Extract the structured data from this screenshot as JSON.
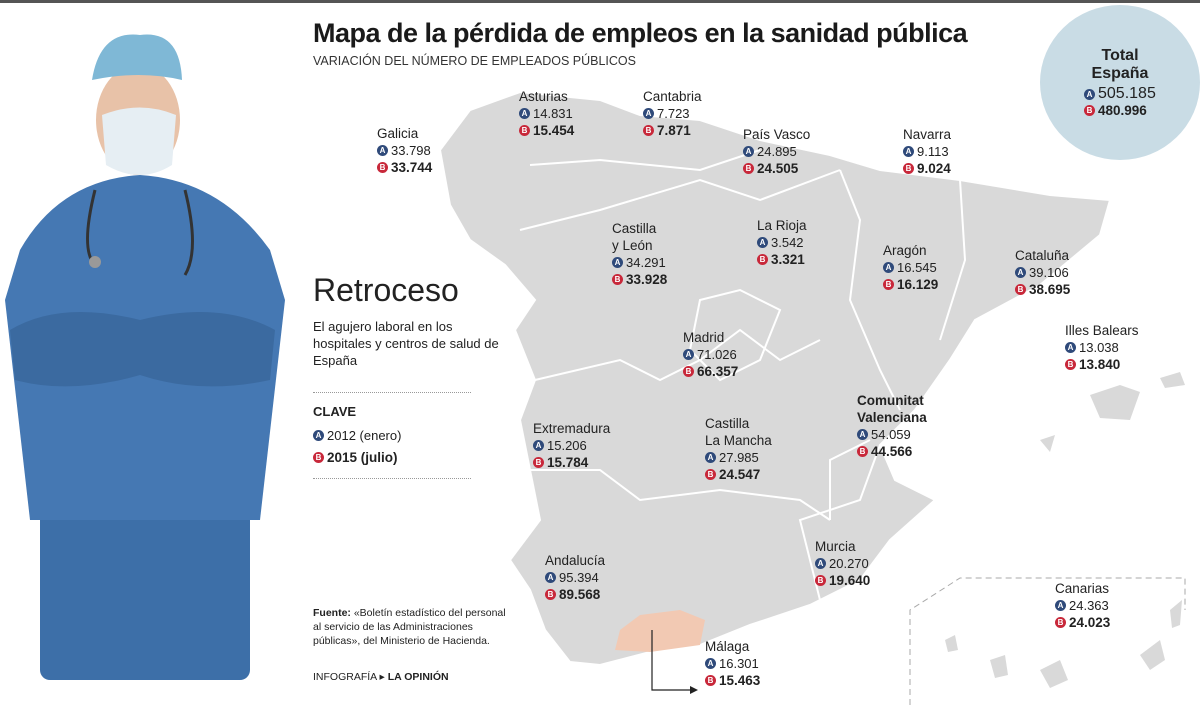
{
  "title": "Mapa de la pérdida de empleos en la sanidad pública",
  "subtitle": "VARIACIÓN DEL NÚMERO DE EMPLEADOS PÚBLICOS",
  "colors": {
    "badge_a": "#2f4a7a",
    "badge_b": "#c8283a",
    "map_fill": "#d9d9d9",
    "highlight_malaga": "#f2c9b3",
    "total_circle": "#c9dce5",
    "scrubs": "#3d6fa8"
  },
  "badges": {
    "a": "A",
    "b": "B"
  },
  "total": {
    "label_line1": "Total",
    "label_line2": "España",
    "a": "505.185",
    "b": "480.996"
  },
  "intro": {
    "heading": "Retroceso",
    "description": "El agujero laboral en los hospitales y centros de salud de España",
    "key_title": "CLAVE",
    "key_a": "2012 (enero)",
    "key_b": "2015 (julio)"
  },
  "source": {
    "label": "Fuente:",
    "text": " «Boletín estadístico del personal al servicio de las Administraciones públicas», del Ministerio de Hacienda."
  },
  "credit": {
    "prefix": "INFOGRAFÍA",
    "arrow_icon": "triangle-right",
    "name": "LA OPINIÓN"
  },
  "regions": [
    {
      "name": "Galicia",
      "a": "33.798",
      "b": "33.744"
    },
    {
      "name": "Asturias",
      "a": "14.831",
      "b": "15.454"
    },
    {
      "name": "Cantabria",
      "a": "7.723",
      "b": "7.871"
    },
    {
      "name": "País Vasco",
      "a": "24.895",
      "b": "24.505"
    },
    {
      "name": "Navarra",
      "a": "9.113",
      "b": "9.024"
    },
    {
      "name": "Castilla y León",
      "a": "34.291",
      "b": "33.928"
    },
    {
      "name": "La Rioja",
      "a": "3.542",
      "b": "3.321"
    },
    {
      "name": "Aragón",
      "a": "16.545",
      "b": "16.129"
    },
    {
      "name": "Cataluña",
      "a": "39.106",
      "b": "38.695"
    },
    {
      "name": "Illes Balears",
      "a": "13.038",
      "b": "13.840"
    },
    {
      "name": "Madrid",
      "a": "71.026",
      "b": "66.357"
    },
    {
      "name": "Comunitat Valenciana",
      "a": "54.059",
      "b": "44.566"
    },
    {
      "name": "Extremadura",
      "a": "15.206",
      "b": "15.784"
    },
    {
      "name": "Castilla La Mancha",
      "a": "27.985",
      "b": "24.547"
    },
    {
      "name": "Murcia",
      "a": "20.270",
      "b": "19.640"
    },
    {
      "name": "Andalucía",
      "a": "95.394",
      "b": "89.568"
    },
    {
      "name": "Málaga",
      "a": "16.301",
      "b": "15.463"
    },
    {
      "name": "Canarias",
      "a": "24.363",
      "b": "24.023"
    }
  ]
}
